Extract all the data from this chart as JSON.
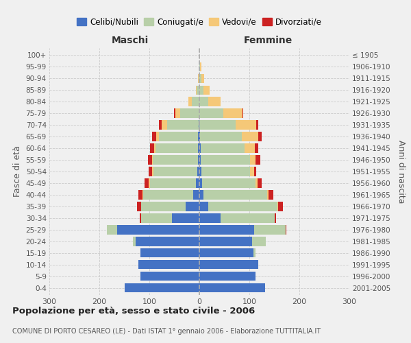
{
  "age_groups": [
    "0-4",
    "5-9",
    "10-14",
    "15-19",
    "20-24",
    "25-29",
    "30-34",
    "35-39",
    "40-44",
    "45-49",
    "50-54",
    "55-59",
    "60-64",
    "65-69",
    "70-74",
    "75-79",
    "80-84",
    "85-89",
    "90-94",
    "95-99",
    "100+"
  ],
  "birth_years": [
    "2001-2005",
    "1996-2000",
    "1991-1995",
    "1986-1990",
    "1981-1985",
    "1976-1980",
    "1971-1975",
    "1966-1970",
    "1961-1965",
    "1956-1960",
    "1951-1955",
    "1946-1950",
    "1941-1945",
    "1936-1940",
    "1931-1935",
    "1926-1930",
    "1921-1925",
    "1916-1920",
    "1911-1915",
    "1906-1910",
    "≤ 1905"
  ],
  "males_celibe": [
    150,
    118,
    122,
    118,
    128,
    165,
    55,
    28,
    13,
    7,
    4,
    3,
    3,
    3,
    2,
    0,
    0,
    0,
    0,
    0,
    0
  ],
  "males_coniugato": [
    0,
    0,
    0,
    0,
    5,
    20,
    62,
    88,
    100,
    92,
    88,
    90,
    85,
    78,
    62,
    38,
    15,
    5,
    2,
    0,
    0
  ],
  "males_vedovo": [
    0,
    0,
    0,
    0,
    0,
    0,
    0,
    0,
    1,
    2,
    2,
    2,
    3,
    5,
    12,
    10,
    7,
    2,
    1,
    0,
    0
  ],
  "males_divorziato": [
    0,
    0,
    0,
    0,
    0,
    0,
    2,
    8,
    8,
    8,
    7,
    8,
    8,
    8,
    5,
    2,
    0,
    0,
    0,
    0,
    0
  ],
  "females_nubile": [
    132,
    112,
    118,
    108,
    105,
    110,
    42,
    18,
    8,
    5,
    4,
    3,
    3,
    2,
    0,
    0,
    0,
    0,
    0,
    0,
    0
  ],
  "females_coniugata": [
    0,
    0,
    0,
    4,
    28,
    62,
    108,
    138,
    128,
    108,
    98,
    98,
    88,
    83,
    72,
    48,
    18,
    8,
    4,
    2,
    0
  ],
  "females_vedova": [
    0,
    0,
    0,
    0,
    0,
    0,
    0,
    1,
    2,
    4,
    7,
    12,
    20,
    33,
    42,
    38,
    25,
    12,
    5,
    2,
    0
  ],
  "females_divorziata": [
    0,
    0,
    0,
    0,
    0,
    2,
    4,
    10,
    10,
    7,
    5,
    9,
    7,
    7,
    4,
    2,
    0,
    0,
    0,
    0,
    0
  ],
  "colors": {
    "celibe": "#4472C4",
    "coniugato": "#B8CFA8",
    "vedovo": "#F5C878",
    "divorziato": "#CC2222"
  },
  "legend_labels": [
    "Celibi/Nubili",
    "Coniugati/e",
    "Vedovi/e",
    "Divorziati/e"
  ],
  "title": "Popolazione per età, sesso e stato civile - 2006",
  "subtitle": "COMUNE DI PORTO CESAREO (LE) - Dati ISTAT 1° gennaio 2006 - Elaborazione TUTTITALIA.IT",
  "ylabel_left": "Fasce di età",
  "ylabel_right": "Anni di nascita",
  "label_maschi": "Maschi",
  "label_femmine": "Femmine",
  "xlim": 300,
  "bg_color": "#f0f0f0",
  "grid_color": "#cccccc"
}
